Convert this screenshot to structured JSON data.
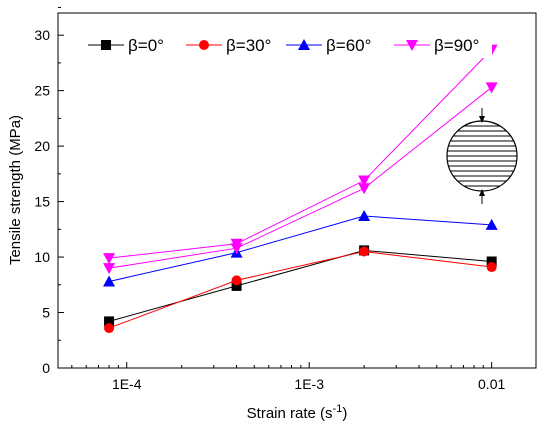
{
  "chart_data": {
    "type": "line",
    "xlabel": "Strain rate (s",
    "xlabel_sup": "-1",
    "xlabel_close": ")",
    "ylabel": "Tensile strength (MPa)",
    "x_scale": "log",
    "xlim": [
      4.2e-05,
      0.0175
    ],
    "ylim": [
      0,
      32
    ],
    "x_ticks": [
      {
        "value": 0.0001,
        "label": "1E-4"
      },
      {
        "value": 0.001,
        "label": "1E-3"
      },
      {
        "value": 0.01,
        "label": "0.01"
      }
    ],
    "y_ticks": [
      {
        "value": 0,
        "label": "0"
      },
      {
        "value": 5,
        "label": "5"
      },
      {
        "value": 10,
        "label": "10"
      },
      {
        "value": 15,
        "label": "15"
      },
      {
        "value": 20,
        "label": "20"
      },
      {
        "value": 25,
        "label": "25"
      },
      {
        "value": 30,
        "label": "30"
      }
    ],
    "grid": false,
    "legend_position": "top",
    "series": [
      {
        "name": "β=0°",
        "color": "#000000",
        "marker": "square",
        "lines": [
          {
            "x": [
              8e-05,
              0.0004,
              0.002,
              0.01
            ],
            "y": [
              4.2,
              7.4,
              10.6,
              9.6
            ]
          }
        ]
      },
      {
        "name": "β=30°",
        "color": "#ff0000",
        "marker": "circle",
        "lines": [
          {
            "x": [
              8e-05,
              0.0004,
              0.002,
              0.01
            ],
            "y": [
              3.6,
              7.9,
              10.5,
              9.1
            ]
          }
        ]
      },
      {
        "name": "β=60°",
        "color": "#0000ff",
        "marker": "triangle-up",
        "lines": [
          {
            "x": [
              8e-05,
              0.0004,
              0.002,
              0.01
            ],
            "y": [
              7.8,
              10.4,
              13.7,
              12.9
            ]
          }
        ]
      },
      {
        "name": "β=90°",
        "color": "#ff00ff",
        "marker": "triangle-down",
        "lines": [
          {
            "x": [
              8e-05,
              0.0004,
              0.002,
              0.01
            ],
            "y": [
              9.9,
              11.2,
              16.9,
              28.7
            ]
          },
          {
            "x": [
              8e-05,
              0.0004,
              0.002,
              0.01
            ],
            "y": [
              9.0,
              10.8,
              16.2,
              25.3
            ]
          }
        ]
      }
    ]
  }
}
